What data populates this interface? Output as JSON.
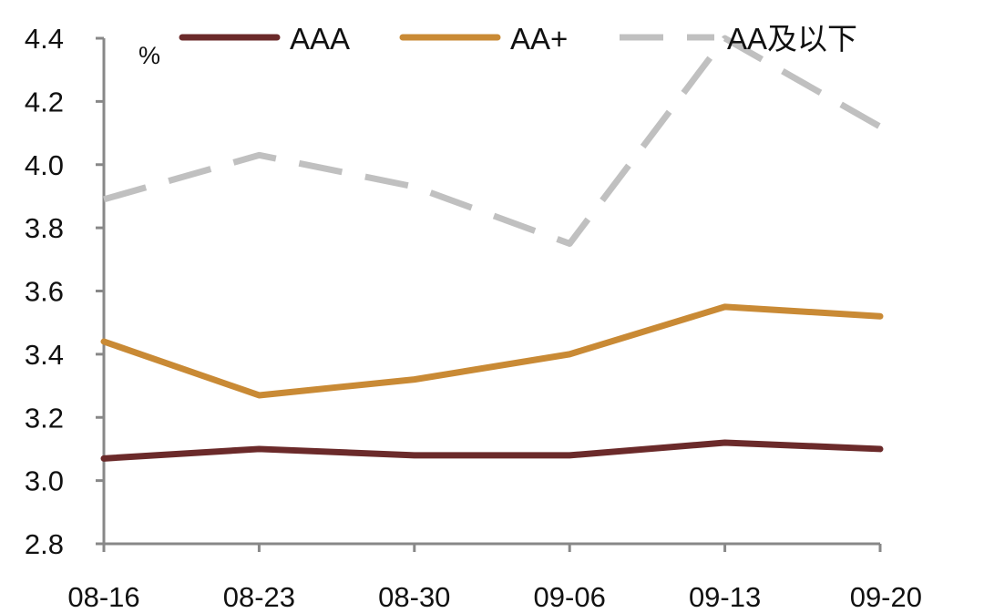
{
  "chart_data": {
    "type": "line",
    "title": "",
    "xlabel": "",
    "ylabel": "%",
    "ylim": [
      2.8,
      4.4
    ],
    "yticks": [
      2.8,
      3.0,
      3.2,
      3.4,
      3.6,
      3.8,
      4.0,
      4.2,
      4.4
    ],
    "ytick_labels": [
      "2.8",
      "3.0",
      "3.2",
      "3.4",
      "3.6",
      "3.8",
      "4.0",
      "4.2",
      "4.4"
    ],
    "categories": [
      "08-16",
      "08-23",
      "08-30",
      "09-06",
      "09-13",
      "09-20"
    ],
    "grid": false,
    "legend_position": "top",
    "series": [
      {
        "name": "AAA",
        "color": "#6b2a2a",
        "dash": "solid",
        "values": [
          3.07,
          3.1,
          3.08,
          3.08,
          3.12,
          3.1
        ]
      },
      {
        "name": "AA+",
        "color": "#c98a35",
        "dash": "solid",
        "values": [
          3.44,
          3.27,
          3.32,
          3.4,
          3.55,
          3.52
        ]
      },
      {
        "name": "AA及以下",
        "color": "#c0c0c0",
        "dash": "dashed",
        "values": [
          3.89,
          4.03,
          3.93,
          3.75,
          4.4,
          4.12
        ]
      }
    ]
  }
}
